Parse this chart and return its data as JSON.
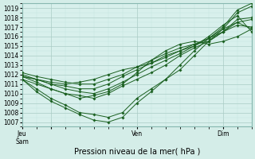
{
  "title": "Pression niveau de la mer( hPa )",
  "ylim": [
    1006.5,
    1019.5
  ],
  "yticks": [
    1007,
    1008,
    1009,
    1010,
    1011,
    1012,
    1013,
    1014,
    1015,
    1016,
    1017,
    1018,
    1019
  ],
  "xlim": [
    0,
    96
  ],
  "xtick_positions": [
    0,
    12,
    48,
    84
  ],
  "xtick_labels": [
    "Jeu Sam",
    "",
    "Ven",
    "Dim"
  ],
  "bg_color": "#d4ede8",
  "plot_bg": "#d8f0ec",
  "grid_color_major": "#aaccc4",
  "grid_color_minor": "#c4e4de",
  "line_color": "#1a6020",
  "marker": "D",
  "marker_size": 1.8,
  "lines": [
    {
      "x": [
        0,
        6,
        12,
        18,
        24,
        30,
        36,
        42,
        48,
        54,
        60,
        66,
        72,
        78,
        84,
        90,
        96
      ],
      "y": [
        1011.8,
        1011.5,
        1011.2,
        1011.0,
        1011.2,
        1011.5,
        1012.0,
        1012.5,
        1012.8,
        1013.2,
        1013.8,
        1014.5,
        1015.0,
        1016.0,
        1017.2,
        1018.2,
        1016.5
      ]
    },
    {
      "x": [
        0,
        6,
        12,
        18,
        24,
        30,
        36,
        42,
        48,
        54,
        60,
        66,
        72,
        78,
        84,
        90,
        96
      ],
      "y": [
        1011.5,
        1010.5,
        1009.5,
        1008.8,
        1008.0,
        1007.8,
        1007.5,
        1008.0,
        1009.5,
        1010.5,
        1011.5,
        1012.5,
        1014.0,
        1015.5,
        1016.8,
        1018.5,
        1019.2
      ]
    },
    {
      "x": [
        0,
        6,
        12,
        18,
        24,
        30,
        36,
        42,
        48,
        54,
        60,
        66,
        72,
        78,
        84,
        90,
        96
      ],
      "y": [
        1011.5,
        1010.2,
        1009.2,
        1008.5,
        1007.8,
        1007.2,
        1007.0,
        1007.5,
        1009.0,
        1010.2,
        1011.5,
        1013.0,
        1014.5,
        1015.8,
        1017.0,
        1018.8,
        1019.5
      ]
    },
    {
      "x": [
        0,
        6,
        12,
        18,
        24,
        30,
        36,
        42,
        48,
        54,
        60,
        66,
        72,
        78,
        84,
        90,
        96
      ],
      "y": [
        1011.8,
        1011.2,
        1010.5,
        1010.0,
        1009.8,
        1009.5,
        1010.0,
        1010.8,
        1011.5,
        1012.2,
        1013.0,
        1014.0,
        1014.8,
        1015.5,
        1016.5,
        1017.8,
        1018.0
      ]
    },
    {
      "x": [
        0,
        6,
        12,
        18,
        24,
        30,
        36,
        42,
        48,
        54,
        60,
        66,
        72,
        78,
        84,
        90,
        96
      ],
      "y": [
        1012.0,
        1011.5,
        1011.0,
        1010.5,
        1010.2,
        1010.0,
        1010.5,
        1011.2,
        1012.0,
        1012.8,
        1013.5,
        1014.2,
        1015.0,
        1015.8,
        1016.8,
        1017.5,
        1017.8
      ]
    },
    {
      "x": [
        0,
        6,
        12,
        18,
        24,
        30,
        36,
        42,
        48,
        54,
        60,
        66,
        72,
        78,
        84,
        90,
        96
      ],
      "y": [
        1011.8,
        1011.5,
        1011.0,
        1010.8,
        1010.5,
        1010.5,
        1011.0,
        1011.8,
        1012.5,
        1013.2,
        1014.0,
        1014.5,
        1015.2,
        1015.8,
        1016.5,
        1017.5,
        1016.8
      ]
    },
    {
      "x": [
        0,
        6,
        12,
        18,
        24,
        30,
        36,
        42,
        48,
        54,
        60,
        66,
        72,
        78,
        84,
        90,
        96
      ],
      "y": [
        1011.5,
        1011.0,
        1010.5,
        1010.0,
        1009.5,
        1009.8,
        1010.2,
        1011.0,
        1012.2,
        1013.5,
        1014.5,
        1015.2,
        1015.5,
        1015.2,
        1015.5,
        1016.0,
        1016.8
      ]
    },
    {
      "x": [
        0,
        6,
        12,
        18,
        24,
        30,
        36,
        42,
        48,
        54,
        60,
        66,
        72,
        78,
        84,
        90,
        96
      ],
      "y": [
        1012.2,
        1011.8,
        1011.5,
        1011.2,
        1011.0,
        1011.0,
        1011.5,
        1012.0,
        1012.8,
        1013.5,
        1014.2,
        1014.8,
        1015.2,
        1015.5,
        1016.5,
        1017.2,
        1017.0
      ]
    }
  ]
}
